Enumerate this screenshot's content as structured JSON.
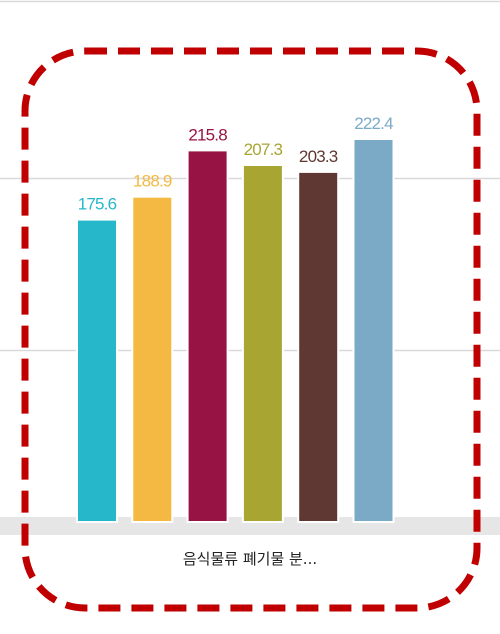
{
  "chart_data": {
    "type": "bar",
    "categories": [
      "음식물류 폐기물 분..."
    ],
    "series": [
      {
        "values": [
          175.6
        ],
        "color": "#27b7cb"
      },
      {
        "values": [
          188.9
        ],
        "color": "#f4b942"
      },
      {
        "values": [
          215.8
        ],
        "color": "#961343"
      },
      {
        "values": [
          207.3
        ],
        "color": "#a8a533"
      },
      {
        "values": [
          203.3
        ],
        "color": "#5f3833"
      },
      {
        "values": [
          222.4
        ],
        "color": "#7aaac6"
      }
    ],
    "ylim": [
      0,
      250
    ],
    "grid": true,
    "title": "",
    "xlabel": "",
    "ylabel": ""
  },
  "highlight": {
    "color": "#c00000",
    "style": "dashed"
  },
  "axis_band_color": "#e6e6e6",
  "gridline_color": "#d9d9d9"
}
